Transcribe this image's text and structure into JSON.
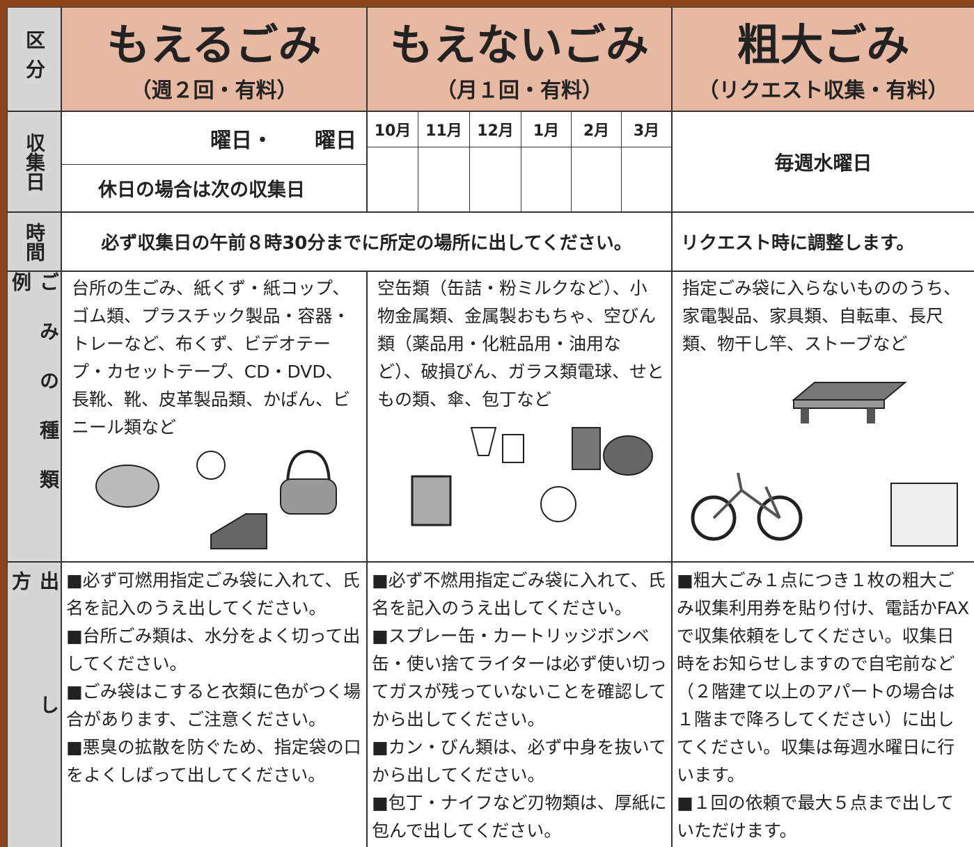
{
  "header": {
    "label": "区分",
    "columns": [
      {
        "title": "もえるごみ",
        "subtitle": "（週２回・有料）"
      },
      {
        "title": "もえないごみ",
        "subtitle": "（月１回・有料）"
      },
      {
        "title": "粗大ごみ",
        "subtitle": "（リクエスト収集・有料）"
      }
    ]
  },
  "collection_day": {
    "label": "収集日",
    "burnable_days": "曜日・　　曜日",
    "burnable_note": "休日の場合は次の収集日",
    "months": [
      "10月",
      "11月",
      "12月",
      "1月",
      "2月",
      "3月"
    ],
    "bulky": "毎週水曜日"
  },
  "time": {
    "label": "時間",
    "regular": "必ず収集日の午前８時30分までに所定の場所に出してください。",
    "bulky": "リクエスト時に調整します。"
  },
  "examples": {
    "label": "ごみの種類例",
    "columns": [
      "台所の生ごみ、紙くず・紙コップ、ゴム類、プラスチック製品・容器・トレーなど、布くず、ビデオテープ・カセットテープ、CD・DVD、長靴、靴、皮革製品類、かばん、ビニール類など",
      "空缶類（缶詰・粉ミルクなど）、小物金属類、金属製おもちゃ、空びん類（薬品用・化粧品用・油用など）、破損びん、ガラス類電球、せともの類、傘、包丁など",
      "指定ごみ袋に入らないもののうち、家電製品、家具類、自転車、長尺類、物干し竿、ストーブなど"
    ]
  },
  "method": {
    "label": "出し方",
    "columns": [
      [
        "■必ず可燃用指定ごみ袋に入れて、氏名を記入のうえ出してください。",
        "■台所ごみ類は、水分をよく切って出してください。",
        "■ごみ袋はこすると衣類に色がつく場合があります、ご注意ください。",
        "■悪臭の拡散を防ぐため、指定袋の口をよくしばって出してください。"
      ],
      [
        "■必ず不燃用指定ごみ袋に入れて、氏名を記入のうえ出してください。",
        "■スプレー缶・カートリッジボンベ缶・使い捨てライターは必ず使い切ってガスが残っていないことを確認してから出してください。",
        "■カン・びん類は、必ず中身を抜いてから出してください。",
        "■包丁・ナイフなど刃物類は、厚紙に包んで出してください。"
      ],
      [
        "■粗大ごみ１点につき１枚の粗大ごみ収集利用券を貼り付け、電話かFAXで収集依頼をしてください。収集日時をお知らせしますので自宅前など（２階建て以上のアパートの場合は１階まで降ろしてください）に出してください。収集は毎週水曜日に行います。",
        "■１回の依頼で最大５点まで出していただけます。"
      ]
    ]
  }
}
